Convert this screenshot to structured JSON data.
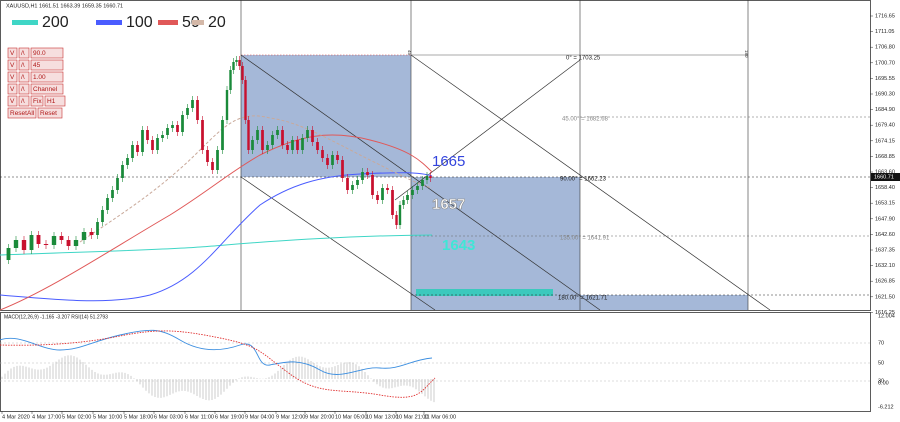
{
  "header": {
    "symbol_info": "XAUUSD,H1  1661.51 1663.39 1659.35 1660.71"
  },
  "legend": [
    {
      "label": "200",
      "color": "#3fd6c6"
    },
    {
      "label": "100",
      "color": "#4a5cff"
    },
    {
      "label": "50",
      "color": "#e05858"
    },
    {
      "label": "20",
      "color": "#d4b8a8"
    }
  ],
  "controls": {
    "rows": [
      [
        "V",
        "/\\",
        "90.0"
      ],
      [
        "V",
        "/\\",
        "45"
      ],
      [
        "V",
        "/\\",
        "1.00"
      ],
      [
        "V",
        "/\\",
        "Channel"
      ],
      [
        "V",
        "/\\",
        "Fix",
        "H1"
      ]
    ],
    "reset_all": "ResetAll",
    "reset": "Reset"
  },
  "fib_levels": [
    "0° = 1703.25",
    "45.00° = 1682.68",
    "90.00° = 1662.23",
    "135.00° = 1641.91",
    "180.00° = 1621.71"
  ],
  "markers": [
    "45",
    "180"
  ],
  "projections": [
    {
      "label": "1665",
      "color": "#3344dd"
    },
    {
      "label": "1657",
      "color": "#ffffff"
    },
    {
      "label": "1643",
      "color": "#40e6d6"
    }
  ],
  "price_axis": {
    "labels": [
      "1716.65",
      "1711.05",
      "1706.80",
      "1700.70",
      "1695.55",
      "1690.30",
      "1684.90",
      "1679.40",
      "1674.15",
      "1668.85",
      "1663.60",
      "1658.40",
      "1653.15",
      "1647.90",
      "1642.60",
      "1637.35",
      "1632.10",
      "1626.85",
      "1621.50",
      "1616.25"
    ],
    "current_price": "1660.71"
  },
  "indicator": {
    "title": "MACD(12,26,9) -1.165 -3.207 RSI(14) 51.2793",
    "axis_labels": [
      "12.004",
      "70",
      "50",
      "30",
      "0.00",
      "-6.212"
    ]
  },
  "time_axis": [
    "4 Mar 2020",
    "4 Mar 17:00",
    "5 Mar 02:00",
    "5 Mar 10:00",
    "5 Mar 18:00",
    "6 Mar 03:00",
    "6 Mar 11:00",
    "6 Mar 19:00",
    "9 Mar 04:00",
    "9 Mar 12:00",
    "9 Mar 20:00",
    "10 Mar 05:00",
    "10 Mar 13:00",
    "10 Mar 21:00",
    "11 Mar 06:00"
  ]
}
